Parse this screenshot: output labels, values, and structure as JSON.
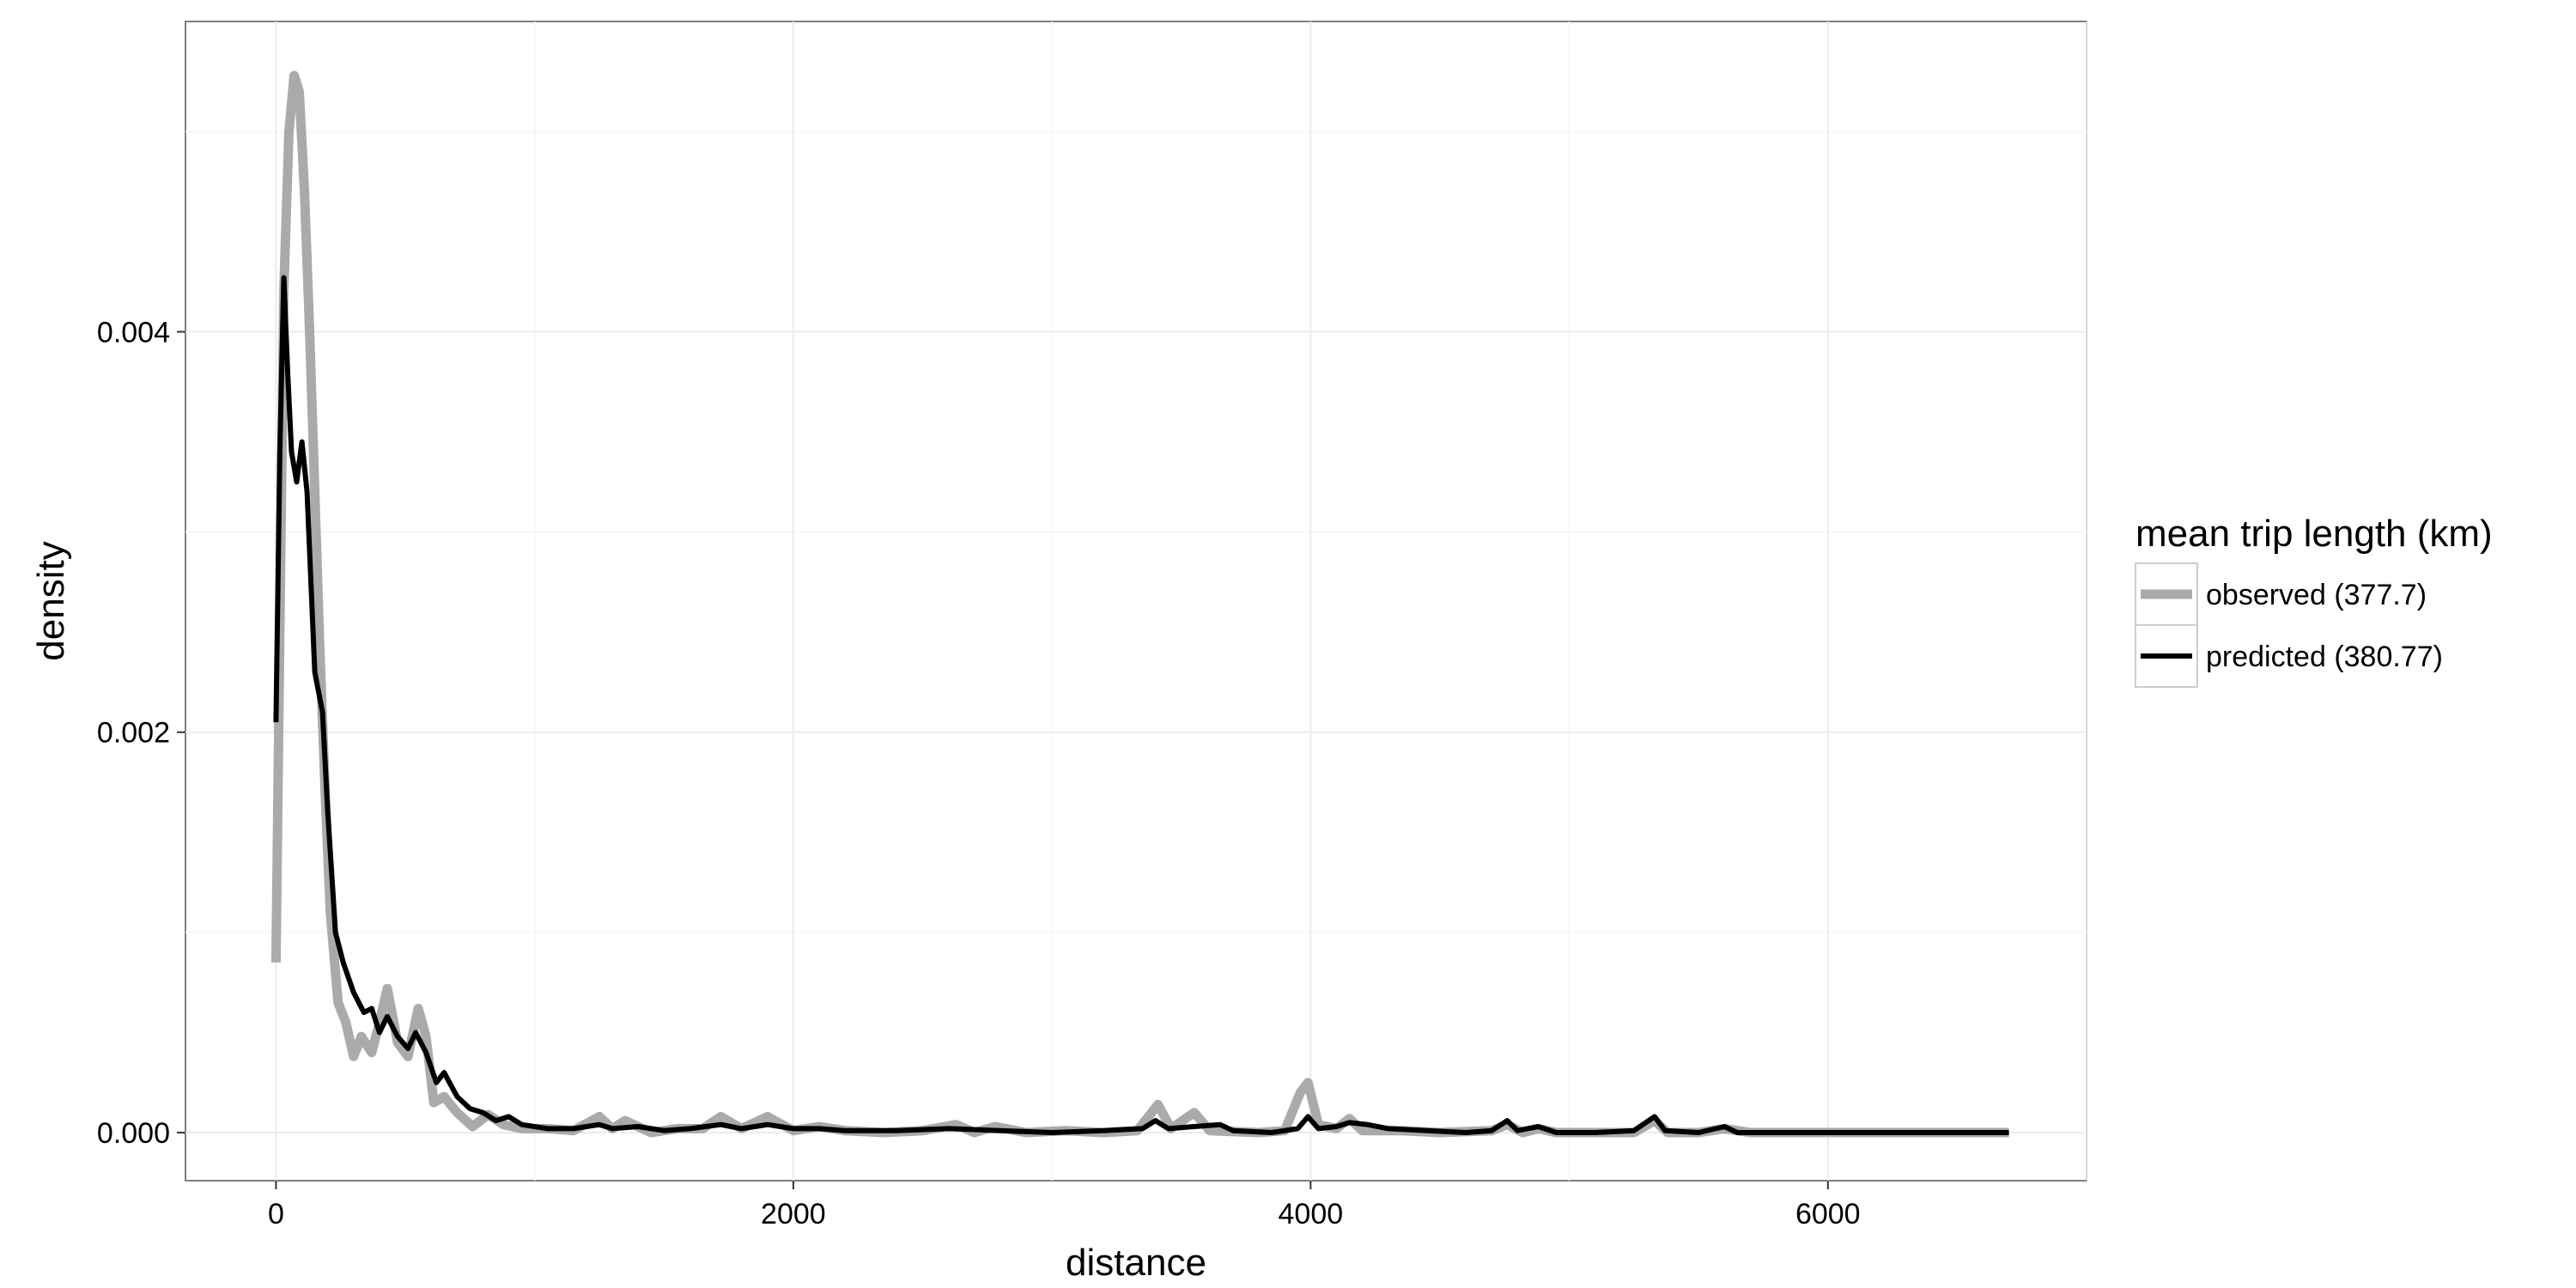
{
  "chart_data": {
    "type": "line",
    "xlabel": "distance",
    "ylabel": "density",
    "xlim": [
      -350,
      7000
    ],
    "ylim": [
      -0.00024,
      0.00555
    ],
    "x_ticks": [
      0,
      2000,
      4000,
      6000
    ],
    "x_tick_labels": [
      "0",
      "2000",
      "4000",
      "6000"
    ],
    "y_ticks": [
      0.0,
      0.002,
      0.004
    ],
    "y_tick_labels": [
      "0.000",
      "0.002",
      "0.004"
    ],
    "grid": true,
    "legend": {
      "title": "mean trip length (km)",
      "placement": "right"
    },
    "series": [
      {
        "name": "observed (377.7)",
        "color": "#aaaaaa",
        "points": [
          [
            0,
            0.00085
          ],
          [
            15,
            0.0025
          ],
          [
            30,
            0.0042
          ],
          [
            50,
            0.005
          ],
          [
            70,
            0.00528
          ],
          [
            90,
            0.0052
          ],
          [
            110,
            0.0047
          ],
          [
            130,
            0.004
          ],
          [
            150,
            0.0032
          ],
          [
            170,
            0.0024
          ],
          [
            190,
            0.0017
          ],
          [
            210,
            0.0011
          ],
          [
            240,
            0.00065
          ],
          [
            270,
            0.00055
          ],
          [
            300,
            0.00038
          ],
          [
            330,
            0.00048
          ],
          [
            370,
            0.0004
          ],
          [
            400,
            0.00055
          ],
          [
            430,
            0.00072
          ],
          [
            470,
            0.00045
          ],
          [
            510,
            0.00038
          ],
          [
            550,
            0.00062
          ],
          [
            580,
            0.00048
          ],
          [
            610,
            0.00015
          ],
          [
            650,
            0.00018
          ],
          [
            700,
            0.0001
          ],
          [
            760,
            3e-05
          ],
          [
            820,
            9e-05
          ],
          [
            880,
            4e-05
          ],
          [
            950,
            2e-05
          ],
          [
            1050,
            2e-05
          ],
          [
            1150,
            1e-05
          ],
          [
            1250,
            8e-05
          ],
          [
            1300,
            2e-05
          ],
          [
            1350,
            6e-05
          ],
          [
            1450,
            0.0
          ],
          [
            1550,
            2e-05
          ],
          [
            1650,
            2e-05
          ],
          [
            1720,
            8e-05
          ],
          [
            1800,
            2e-05
          ],
          [
            1900,
            8e-05
          ],
          [
            2000,
            1e-05
          ],
          [
            2100,
            3e-05
          ],
          [
            2200,
            1e-05
          ],
          [
            2350,
            0.0
          ],
          [
            2500,
            1e-05
          ],
          [
            2630,
            4e-05
          ],
          [
            2700,
            0.0
          ],
          [
            2780,
            3e-05
          ],
          [
            2900,
            0.0
          ],
          [
            3050,
            1e-05
          ],
          [
            3200,
            0.0
          ],
          [
            3330,
            1e-05
          ],
          [
            3410,
            0.00014
          ],
          [
            3460,
            2e-05
          ],
          [
            3550,
            0.0001
          ],
          [
            3610,
            1e-05
          ],
          [
            3800,
            0.0
          ],
          [
            3900,
            1e-05
          ],
          [
            3960,
            0.0002
          ],
          [
            3990,
            0.00025
          ],
          [
            4030,
            4e-05
          ],
          [
            4100,
            2e-05
          ],
          [
            4150,
            7e-05
          ],
          [
            4200,
            1e-05
          ],
          [
            4350,
            1e-05
          ],
          [
            4500,
            0.0
          ],
          [
            4700,
            1e-05
          ],
          [
            4760,
            4e-05
          ],
          [
            4820,
            0.0
          ],
          [
            4880,
            2e-05
          ],
          [
            4950,
            0.0
          ],
          [
            5100,
            0.0
          ],
          [
            5250,
            0.0
          ],
          [
            5330,
            6e-05
          ],
          [
            5380,
            0.0
          ],
          [
            5500,
            0.0
          ],
          [
            5600,
            2e-05
          ],
          [
            5700,
            0.0
          ],
          [
            6000,
            0.0
          ],
          [
            6400,
            0.0
          ],
          [
            6700,
            0.0
          ]
        ]
      },
      {
        "name": "predicted (380.77)",
        "color": "#000000",
        "points": [
          [
            0,
            0.00205
          ],
          [
            15,
            0.0034
          ],
          [
            30,
            0.00427
          ],
          [
            45,
            0.0038
          ],
          [
            60,
            0.0034
          ],
          [
            80,
            0.00325
          ],
          [
            100,
            0.00345
          ],
          [
            120,
            0.0032
          ],
          [
            150,
            0.0023
          ],
          [
            180,
            0.0021
          ],
          [
            200,
            0.0016
          ],
          [
            230,
            0.001
          ],
          [
            260,
            0.00085
          ],
          [
            300,
            0.0007
          ],
          [
            340,
            0.0006
          ],
          [
            370,
            0.00062
          ],
          [
            400,
            0.0005
          ],
          [
            430,
            0.00058
          ],
          [
            470,
            0.00048
          ],
          [
            510,
            0.00042
          ],
          [
            540,
            0.0005
          ],
          [
            580,
            0.0004
          ],
          [
            620,
            0.00025
          ],
          [
            650,
            0.0003
          ],
          [
            700,
            0.00018
          ],
          [
            750,
            0.00012
          ],
          [
            800,
            0.0001
          ],
          [
            850,
            6e-05
          ],
          [
            900,
            8e-05
          ],
          [
            950,
            4e-05
          ],
          [
            1050,
            2e-05
          ],
          [
            1150,
            2e-05
          ],
          [
            1250,
            4e-05
          ],
          [
            1300,
            2e-05
          ],
          [
            1400,
            3e-05
          ],
          [
            1500,
            1e-05
          ],
          [
            1600,
            2e-05
          ],
          [
            1720,
            4e-05
          ],
          [
            1800,
            2e-05
          ],
          [
            1900,
            4e-05
          ],
          [
            2000,
            2e-05
          ],
          [
            2100,
            2e-05
          ],
          [
            2200,
            1e-05
          ],
          [
            2400,
            1e-05
          ],
          [
            2600,
            2e-05
          ],
          [
            2800,
            1e-05
          ],
          [
            3000,
            0.0
          ],
          [
            3200,
            1e-05
          ],
          [
            3350,
            2e-05
          ],
          [
            3400,
            6e-05
          ],
          [
            3450,
            2e-05
          ],
          [
            3550,
            3e-05
          ],
          [
            3650,
            4e-05
          ],
          [
            3700,
            1e-05
          ],
          [
            3850,
            0.0
          ],
          [
            3950,
            2e-05
          ],
          [
            3990,
            8e-05
          ],
          [
            4030,
            2e-05
          ],
          [
            4100,
            3e-05
          ],
          [
            4150,
            5e-05
          ],
          [
            4220,
            4e-05
          ],
          [
            4300,
            2e-05
          ],
          [
            4450,
            1e-05
          ],
          [
            4600,
            0.0
          ],
          [
            4700,
            1e-05
          ],
          [
            4760,
            6e-05
          ],
          [
            4800,
            1e-05
          ],
          [
            4880,
            3e-05
          ],
          [
            4950,
            0.0
          ],
          [
            5100,
            0.0
          ],
          [
            5250,
            1e-05
          ],
          [
            5330,
            8e-05
          ],
          [
            5370,
            1e-05
          ],
          [
            5500,
            0.0
          ],
          [
            5600,
            3e-05
          ],
          [
            5650,
            0.0
          ],
          [
            6000,
            0.0
          ],
          [
            6400,
            0.0
          ],
          [
            6700,
            0.0
          ]
        ]
      }
    ]
  }
}
